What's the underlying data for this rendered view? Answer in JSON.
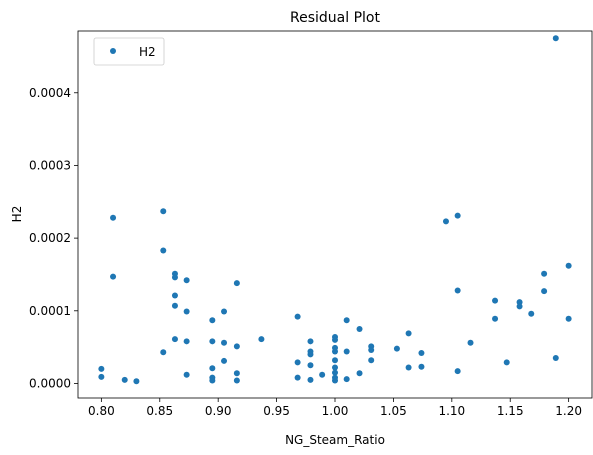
{
  "chart_data": {
    "type": "scatter",
    "title": "Residual Plot",
    "xlabel": "NG_Steam_Ratio",
    "ylabel": "H2",
    "xlim": [
      0.78,
      1.22
    ],
    "ylim": [
      -2e-05,
      0.000485
    ],
    "x_ticks": [
      0.8,
      0.85,
      0.9,
      0.95,
      1.0,
      1.05,
      1.1,
      1.15,
      1.2
    ],
    "x_tick_labels": [
      "0.80",
      "0.85",
      "0.90",
      "0.95",
      "1.00",
      "1.05",
      "1.10",
      "1.15",
      "1.20"
    ],
    "y_ticks": [
      0.0,
      0.0001,
      0.0002,
      0.0003,
      0.0004
    ],
    "y_tick_labels": [
      "0.0000",
      "0.0001",
      "0.0002",
      "0.0003",
      "0.0004"
    ],
    "grid": false,
    "legend": {
      "position": "top-left",
      "entries": [
        "H2"
      ]
    },
    "series": [
      {
        "name": "H2",
        "color": "#1f77b4",
        "points": [
          [
            0.8,
            2e-05
          ],
          [
            0.8,
            9e-06
          ],
          [
            0.81,
            0.000228
          ],
          [
            0.81,
            0.000147
          ],
          [
            0.82,
            5e-06
          ],
          [
            0.83,
            3e-06
          ],
          [
            0.853,
            0.000237
          ],
          [
            0.853,
            0.000183
          ],
          [
            0.853,
            4.3e-05
          ],
          [
            0.863,
            0.000151
          ],
          [
            0.863,
            0.000146
          ],
          [
            0.863,
            0.000121
          ],
          [
            0.863,
            0.000107
          ],
          [
            0.863,
            6.1e-05
          ],
          [
            0.873,
            0.000142
          ],
          [
            0.873,
            9.9e-05
          ],
          [
            0.873,
            5.8e-05
          ],
          [
            0.873,
            1.2e-05
          ],
          [
            0.895,
            8.7e-05
          ],
          [
            0.895,
            5.8e-05
          ],
          [
            0.895,
            2.1e-05
          ],
          [
            0.895,
            8e-06
          ],
          [
            0.895,
            4e-06
          ],
          [
            0.905,
            9.9e-05
          ],
          [
            0.905,
            5.6e-05
          ],
          [
            0.905,
            3.1e-05
          ],
          [
            0.916,
            0.000138
          ],
          [
            0.916,
            5.1e-05
          ],
          [
            0.916,
            1.4e-05
          ],
          [
            0.916,
            4e-06
          ],
          [
            0.937,
            6.1e-05
          ],
          [
            0.968,
            9.2e-05
          ],
          [
            0.968,
            2.9e-05
          ],
          [
            0.968,
            8e-06
          ],
          [
            0.979,
            5.8e-05
          ],
          [
            0.979,
            4.4e-05
          ],
          [
            0.979,
            4e-05
          ],
          [
            0.979,
            2.5e-05
          ],
          [
            0.979,
            5e-06
          ],
          [
            0.989,
            1.2e-05
          ],
          [
            1.0,
            6.4e-05
          ],
          [
            1.0,
            6e-05
          ],
          [
            1.0,
            4.9e-05
          ],
          [
            1.0,
            4.4e-05
          ],
          [
            1.0,
            3.2e-05
          ],
          [
            1.0,
            2.2e-05
          ],
          [
            1.0,
            1.5e-05
          ],
          [
            1.0,
            8e-06
          ],
          [
            1.0,
            4e-06
          ],
          [
            1.01,
            8.7e-05
          ],
          [
            1.01,
            4.4e-05
          ],
          [
            1.01,
            6e-06
          ],
          [
            1.021,
            7.5e-05
          ],
          [
            1.021,
            1.4e-05
          ],
          [
            1.031,
            5.1e-05
          ],
          [
            1.031,
            4.6e-05
          ],
          [
            1.031,
            3.2e-05
          ],
          [
            1.053,
            4.8e-05
          ],
          [
            1.063,
            6.9e-05
          ],
          [
            1.063,
            2.2e-05
          ],
          [
            1.074,
            4.2e-05
          ],
          [
            1.074,
            2.3e-05
          ],
          [
            1.095,
            0.000223
          ],
          [
            1.105,
            0.000231
          ],
          [
            1.105,
            0.000128
          ],
          [
            1.105,
            1.7e-05
          ],
          [
            1.116,
            5.6e-05
          ],
          [
            1.137,
            0.000114
          ],
          [
            1.137,
            8.9e-05
          ],
          [
            1.147,
            2.9e-05
          ],
          [
            1.158,
            0.000112
          ],
          [
            1.158,
            0.000106
          ],
          [
            1.168,
            9.6e-05
          ],
          [
            1.179,
            0.000151
          ],
          [
            1.179,
            0.000127
          ],
          [
            1.189,
            0.000475
          ],
          [
            1.189,
            3.5e-05
          ],
          [
            1.2,
            0.000162
          ],
          [
            1.2,
            8.9e-05
          ]
        ]
      }
    ]
  }
}
